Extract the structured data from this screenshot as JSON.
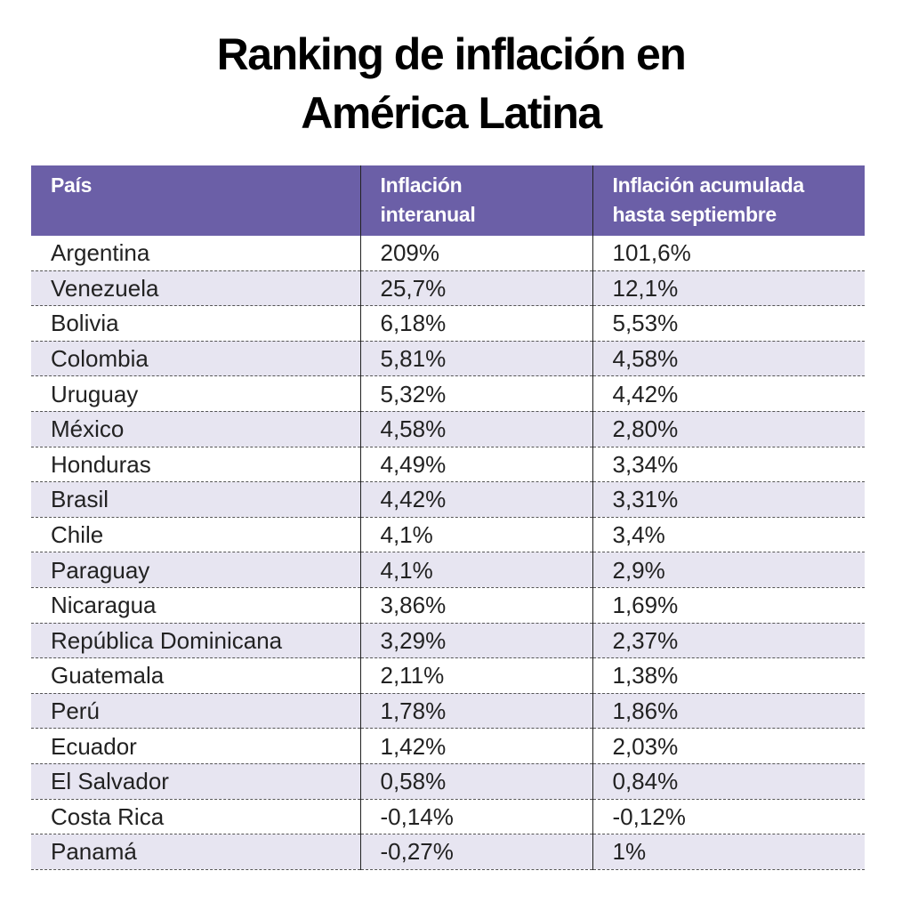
{
  "header": {
    "title": [
      "Ranking de inflación en",
      "América Latina"
    ]
  },
  "table": {
    "columns": [
      [
        "País"
      ],
      [
        "Inflación",
        "interanual"
      ],
      [
        "Inflación acumulada",
        "hasta septiembre"
      ]
    ],
    "rows": [
      [
        "Argentina",
        "209%",
        "101,6%"
      ],
      [
        "Venezuela",
        "25,7%",
        "12,1%"
      ],
      [
        "Bolivia",
        "6,18%",
        "5,53%"
      ],
      [
        "Colombia",
        "5,81%",
        "4,58%"
      ],
      [
        "Uruguay",
        "5,32%",
        "4,42%"
      ],
      [
        "México",
        "4,58%",
        "2,80%"
      ],
      [
        "Honduras",
        "4,49%",
        "3,34%"
      ],
      [
        "Brasil",
        "4,42%",
        "3,31%"
      ],
      [
        "Chile",
        "4,1%",
        "3,4%"
      ],
      [
        "Paraguay",
        "4,1%",
        "2,9%"
      ],
      [
        "Nicaragua",
        "3,86%",
        "1,69%"
      ],
      [
        "República Dominicana",
        "3,29%",
        "2,37%"
      ],
      [
        "Guatemala",
        "2,11%",
        "1,38%"
      ],
      [
        "Perú",
        "1,78%",
        "1,86%"
      ],
      [
        "Ecuador",
        "1,42%",
        "2,03%"
      ],
      [
        "El Salvador",
        "0,58%",
        "0,84%"
      ],
      [
        "Costa Rica",
        "-0,14%",
        "-0,12%"
      ],
      [
        "Panamá",
        "-0,27%",
        "1%"
      ]
    ]
  }
}
